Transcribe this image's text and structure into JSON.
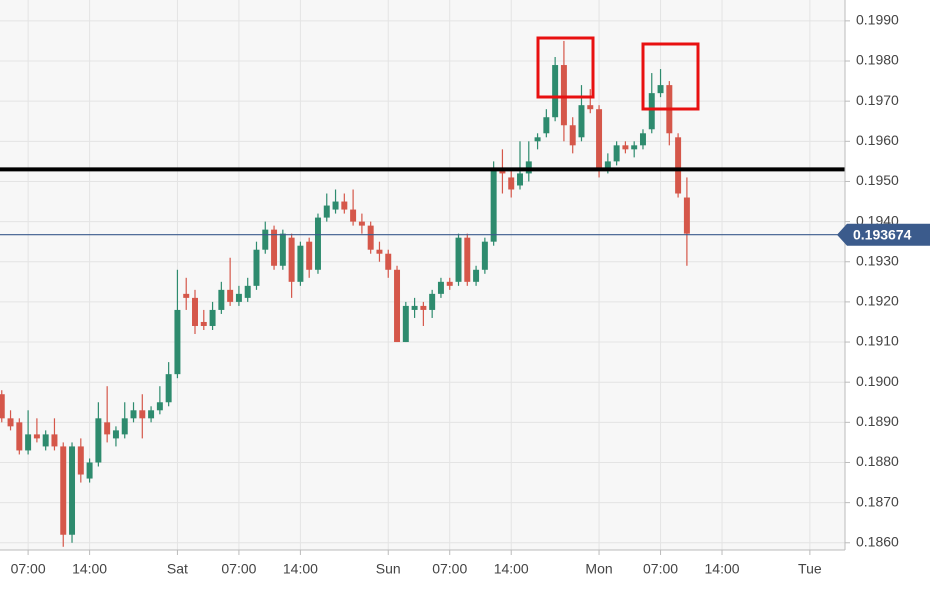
{
  "chart_data": {
    "type": "candlestick",
    "up_color": "#2e8b6e",
    "down_color": "#d5574a",
    "grid": true,
    "xlim": [
      -0.2,
      96.0
    ],
    "xticks": [
      {
        "value": 3,
        "label": "07:00"
      },
      {
        "value": 10,
        "label": "14:00"
      },
      {
        "value": 20,
        "label": "Sat"
      },
      {
        "value": 27,
        "label": "07:00"
      },
      {
        "value": 34,
        "label": "14:00"
      },
      {
        "value": 44,
        "label": "Sun"
      },
      {
        "value": 51,
        "label": "07:00"
      },
      {
        "value": 58,
        "label": "14:00"
      },
      {
        "value": 68,
        "label": "Mon"
      },
      {
        "value": 75,
        "label": "07:00"
      },
      {
        "value": 82,
        "label": "14:00"
      },
      {
        "value": 92,
        "label": "Tue"
      }
    ],
    "ylim": [
      0.18582,
      0.19952
    ],
    "yticks": [
      {
        "value": 0.186,
        "label": "0.1860"
      },
      {
        "value": 0.187,
        "label": "0.1870"
      },
      {
        "value": 0.188,
        "label": "0.1880"
      },
      {
        "value": 0.189,
        "label": "0.1890"
      },
      {
        "value": 0.19,
        "label": "0.1900"
      },
      {
        "value": 0.191,
        "label": "0.1910"
      },
      {
        "value": 0.192,
        "label": "0.1920"
      },
      {
        "value": 0.193,
        "label": "0.1930"
      },
      {
        "value": 0.194,
        "label": "0.1940"
      },
      {
        "value": 0.195,
        "label": "0.1950"
      },
      {
        "value": 0.196,
        "label": "0.1960"
      },
      {
        "value": 0.197,
        "label": "0.1970"
      },
      {
        "value": 0.198,
        "label": "0.1980"
      },
      {
        "value": 0.199,
        "label": "0.1990"
      }
    ],
    "level": {
      "value": 0.1953,
      "color": "#000000"
    },
    "current_price": {
      "value": 0.193674,
      "color": "#3b5b8c"
    },
    "ohlc": [
      [
        0.1897,
        0.1898,
        0.189,
        0.1891
      ],
      [
        0.1891,
        0.1893,
        0.1888,
        0.1889
      ],
      [
        0.189,
        0.1891,
        0.1882,
        0.1883
      ],
      [
        0.1883,
        0.1893,
        0.1882,
        0.1887
      ],
      [
        0.1887,
        0.1891,
        0.1885,
        0.1886
      ],
      [
        0.1884,
        0.1888,
        0.1883,
        0.1887
      ],
      [
        0.1887,
        0.1891,
        0.1883,
        0.1884
      ],
      [
        0.1884,
        0.1885,
        0.1859,
        0.1862
      ],
      [
        0.1862,
        0.1885,
        0.186,
        0.1884
      ],
      [
        0.1884,
        0.1886,
        0.1875,
        0.1877
      ],
      [
        0.1876,
        0.1881,
        0.1875,
        0.188
      ],
      [
        0.188,
        0.1895,
        0.1879,
        0.1891
      ],
      [
        0.189,
        0.1899,
        0.1885,
        0.1887
      ],
      [
        0.1886,
        0.1889,
        0.1884,
        0.1888
      ],
      [
        0.1887,
        0.1895,
        0.1886,
        0.1891
      ],
      [
        0.1891,
        0.1895,
        0.189,
        0.1893
      ],
      [
        0.1893,
        0.1897,
        0.1886,
        0.1891
      ],
      [
        0.1891,
        0.1894,
        0.189,
        0.1893
      ],
      [
        0.1893,
        0.1899,
        0.1892,
        0.1895
      ],
      [
        0.1895,
        0.1905,
        0.1894,
        0.1902
      ],
      [
        0.1902,
        0.1928,
        0.1901,
        0.1918
      ],
      [
        0.1922,
        0.1926,
        0.1918,
        0.1921
      ],
      [
        0.1921,
        0.1923,
        0.1912,
        0.1914
      ],
      [
        0.1915,
        0.1918,
        0.1913,
        0.1914
      ],
      [
        0.1914,
        0.192,
        0.1913,
        0.1918
      ],
      [
        0.1918,
        0.1925,
        0.1917,
        0.1923
      ],
      [
        0.1923,
        0.1931,
        0.1919,
        0.192
      ],
      [
        0.192,
        0.1924,
        0.1919,
        0.1922
      ],
      [
        0.1921,
        0.1926,
        0.192,
        0.1924
      ],
      [
        0.1924,
        0.1935,
        0.1923,
        0.1933
      ],
      [
        0.1933,
        0.194,
        0.1932,
        0.1938
      ],
      [
        0.1938,
        0.1939,
        0.1928,
        0.1929
      ],
      [
        0.1929,
        0.1938,
        0.1928,
        0.1937
      ],
      [
        0.1936,
        0.1937,
        0.1921,
        0.1925
      ],
      [
        0.1925,
        0.1935,
        0.1924,
        0.1934
      ],
      [
        0.1935,
        0.1936,
        0.1926,
        0.1928
      ],
      [
        0.1928,
        0.1942,
        0.1927,
        0.1941
      ],
      [
        0.1941,
        0.1947,
        0.194,
        0.1944
      ],
      [
        0.1943,
        0.1948,
        0.1942,
        0.1945
      ],
      [
        0.1945,
        0.1947,
        0.1942,
        0.1943
      ],
      [
        0.1943,
        0.1948,
        0.1939,
        0.194
      ],
      [
        0.194,
        0.1942,
        0.1937,
        0.1939
      ],
      [
        0.1939,
        0.194,
        0.1932,
        0.1933
      ],
      [
        0.1933,
        0.1935,
        0.193,
        0.1932
      ],
      [
        0.1932,
        0.1933,
        0.1926,
        0.1928
      ],
      [
        0.1928,
        0.1929,
        0.191,
        0.191
      ],
      [
        0.191,
        0.192,
        0.191,
        0.1919
      ],
      [
        0.1918,
        0.1921,
        0.1916,
        0.1919
      ],
      [
        0.1919,
        0.192,
        0.1914,
        0.1918
      ],
      [
        0.1918,
        0.1923,
        0.1916,
        0.1922
      ],
      [
        0.1922,
        0.1926,
        0.1921,
        0.1925
      ],
      [
        0.1925,
        0.1926,
        0.1923,
        0.1924
      ],
      [
        0.1925,
        0.1937,
        0.1924,
        0.1936
      ],
      [
        0.1936,
        0.1937,
        0.1924,
        0.1925
      ],
      [
        0.1925,
        0.1929,
        0.1924,
        0.1928
      ],
      [
        0.1928,
        0.1936,
        0.1927,
        0.1935
      ],
      [
        0.1935,
        0.1955,
        0.1934,
        0.1953
      ],
      [
        0.1953,
        0.1958,
        0.1947,
        0.1952
      ],
      [
        0.1951,
        0.1953,
        0.1946,
        0.1948
      ],
      [
        0.1949,
        0.196,
        0.1948,
        0.1952
      ],
      [
        0.1952,
        0.196,
        0.195,
        0.1955
      ],
      [
        0.196,
        0.1962,
        0.1958,
        0.1961
      ],
      [
        0.1962,
        0.1968,
        0.1961,
        0.1966
      ],
      [
        0.1966,
        0.1981,
        0.1965,
        0.1979
      ],
      [
        0.1979,
        0.1985,
        0.196,
        0.1964
      ],
      [
        0.1964,
        0.1966,
        0.1957,
        0.1959
      ],
      [
        0.1961,
        0.1974,
        0.196,
        0.1969
      ],
      [
        0.1969,
        0.1973,
        0.1967,
        0.1968
      ],
      [
        0.1968,
        0.1969,
        0.1951,
        0.1953
      ],
      [
        0.1953,
        0.1957,
        0.1952,
        0.1955
      ],
      [
        0.1955,
        0.196,
        0.1954,
        0.1959
      ],
      [
        0.1959,
        0.196,
        0.1957,
        0.1958
      ],
      [
        0.1958,
        0.196,
        0.1956,
        0.1959
      ],
      [
        0.1959,
        0.1963,
        0.1958,
        0.1962
      ],
      [
        0.1963,
        0.1977,
        0.1962,
        0.1972
      ],
      [
        0.1972,
        0.1978,
        0.1971,
        0.1974
      ],
      [
        0.1974,
        0.1975,
        0.1959,
        0.1962
      ],
      [
        0.1961,
        0.1962,
        0.1946,
        0.1947
      ],
      [
        0.1946,
        0.1951,
        0.1929,
        0.1937
      ]
    ]
  }
}
